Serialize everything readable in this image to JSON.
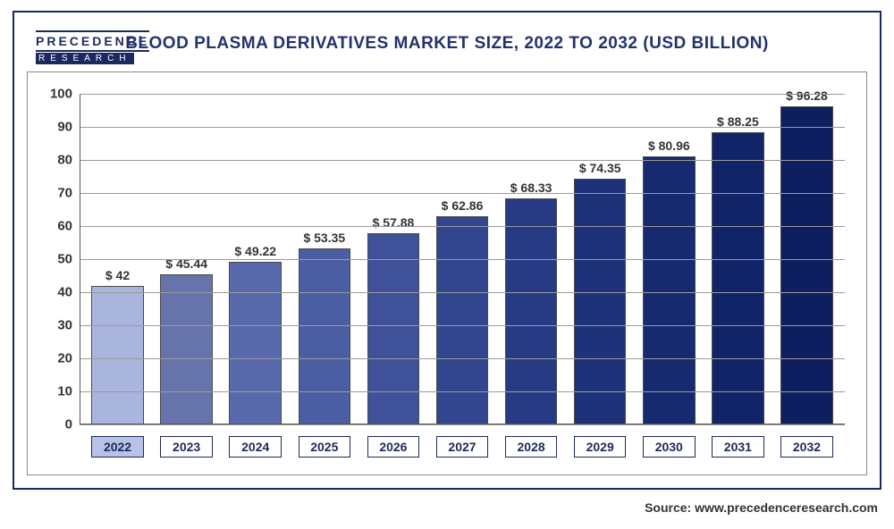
{
  "logo": {
    "top": "PRECEDENCE",
    "bottom": "RESEARCH"
  },
  "title": "BLOOD PLASMA DERIVATIVES MARKET SIZE, 2022 TO 2032 (USD BILLION)",
  "source": "Source: www.precedenceresearch.com",
  "chart": {
    "type": "bar",
    "categories": [
      "2022",
      "2023",
      "2024",
      "2025",
      "2026",
      "2027",
      "2028",
      "2029",
      "2030",
      "2031",
      "2032"
    ],
    "values": [
      42,
      45.44,
      49.22,
      53.35,
      57.88,
      62.86,
      68.33,
      74.35,
      80.96,
      88.25,
      96.28
    ],
    "value_labels": [
      "$ 42",
      "$ 45.44",
      "$ 49.22",
      "$ 53.35",
      "$ 57.88",
      "$ 62.86",
      "$ 68.33",
      "$ 74.35",
      "$ 80.96",
      "$ 88.25",
      "$ 96.28"
    ],
    "bar_colors": [
      "#a9b5dd",
      "#6674ab",
      "#586aab",
      "#4b5da3",
      "#3e5199",
      "#32468f",
      "#273b84",
      "#1e327a",
      "#162a70",
      "#112467",
      "#0d1f5e"
    ],
    "highlight_index": 0,
    "ylim": [
      0,
      100
    ],
    "ytick_step": 10,
    "yticks": [
      0,
      10,
      20,
      30,
      40,
      50,
      60,
      70,
      80,
      90,
      100
    ],
    "grid_color": "#9a9a9a",
    "background_color": "#ffffff",
    "bar_border_color": "#4a4a4a",
    "bar_width": 0.76,
    "label_fontsize": 14,
    "title_fontsize": 19,
    "title_color": "#22326e",
    "xbox_border_color": "#1a2a5e",
    "highlight_bg": "#b7c2e6"
  }
}
